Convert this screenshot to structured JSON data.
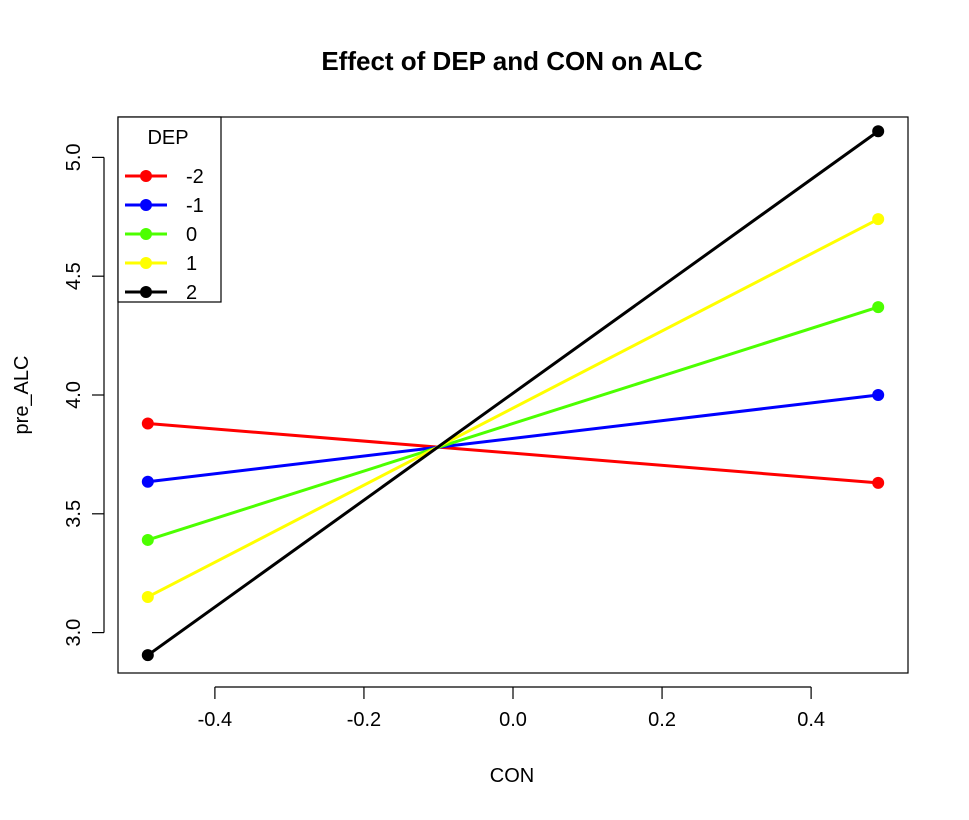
{
  "chart_data": {
    "type": "line",
    "title": "Effect of DEP and CON on ALC",
    "xlabel": "CON",
    "ylabel": "pre_ALC",
    "x": [
      -0.49,
      0.49
    ],
    "xlim": [
      -0.53,
      0.53
    ],
    "ylim": [
      2.83,
      5.17
    ],
    "xticks": [
      -0.4,
      -0.2,
      0.0,
      0.2,
      0.4
    ],
    "xtick_labels": [
      "-0.4",
      "-0.2",
      "0.0",
      "0.2",
      "0.4"
    ],
    "yticks": [
      3.0,
      3.5,
      4.0,
      4.5,
      5.0
    ],
    "ytick_labels": [
      "3.0",
      "3.5",
      "4.0",
      "4.5",
      "5.0"
    ],
    "grid": false,
    "legend": {
      "title": "DEP",
      "position": "top-left"
    },
    "series": [
      {
        "name": "-2",
        "color": "#ff0000",
        "values": [
          3.88,
          3.63
        ]
      },
      {
        "name": "-1",
        "color": "#0000ff",
        "values": [
          3.635,
          4.0
        ]
      },
      {
        "name": "0",
        "color": "#4cff00",
        "values": [
          3.39,
          4.37
        ]
      },
      {
        "name": "1",
        "color": "#ffff00",
        "values": [
          3.15,
          4.74
        ]
      },
      {
        "name": "2",
        "color": "#000000",
        "values": [
          2.905,
          5.11
        ]
      }
    ]
  }
}
